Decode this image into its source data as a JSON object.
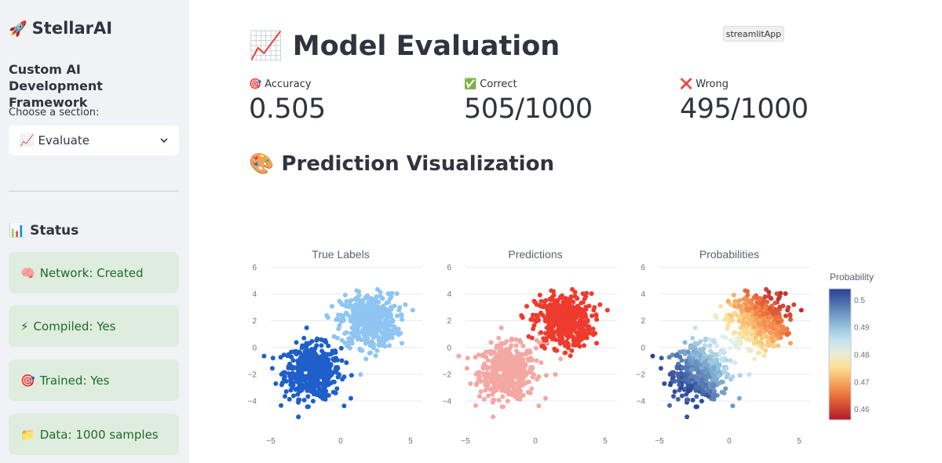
{
  "sidebar": {
    "brand_icon": "🚀",
    "brand": "StellarAI",
    "subtitle": "Custom AI Development Framework",
    "choose_label": "Choose a section:",
    "selected_section": "📈 Evaluate",
    "status_title": "📊 Status",
    "status_items": [
      {
        "icon": "🧠",
        "text": "Network: Created"
      },
      {
        "icon": "⚡",
        "text": "Compiled: Yes"
      },
      {
        "icon": "🎯",
        "text": "Trained: Yes"
      },
      {
        "icon": "📁",
        "text": "Data: 1000 samples"
      }
    ]
  },
  "badge": "streamlitApp",
  "main": {
    "title": "📈 Model Evaluation",
    "metrics": [
      {
        "icon": "🎯",
        "label": "Accuracy",
        "value": "0.505"
      },
      {
        "icon": "✅",
        "label": "Correct",
        "value": "505/1000"
      },
      {
        "icon": "❌",
        "label": "Wrong",
        "value": "495/1000"
      }
    ],
    "viz_title": "🎨 Prediction Visualization"
  },
  "colors": {
    "class0_true": "#1f5fc9",
    "class1_true": "#8ec5f2",
    "class0_pred": "#ee3b2e",
    "class1_pred": "#f4a8a4",
    "status_text": "#1f6b2a",
    "status_bg": "#dfeddf"
  },
  "chart_data": {
    "type": "scatter",
    "panels": [
      "True Labels",
      "Predictions",
      "Probabilities"
    ],
    "xticks": [
      -5,
      0,
      5
    ],
    "yticks": [
      6,
      4,
      2,
      0,
      -2,
      -4
    ],
    "xlim": [
      -5,
      5
    ],
    "ylim": [
      -5.7,
      6.5
    ],
    "clusters": [
      {
        "center": [
          -2,
          -1.8
        ],
        "spread": 1.0,
        "n": 500,
        "true_label": 0
      },
      {
        "center": [
          2,
          2
        ],
        "spread": 1.0,
        "n": 500,
        "true_label": 1
      }
    ],
    "colorbar": {
      "title": "Probability",
      "ticks": [
        0.5,
        0.49,
        0.48,
        0.47,
        0.46
      ],
      "range": [
        0.456,
        0.504
      ]
    }
  }
}
